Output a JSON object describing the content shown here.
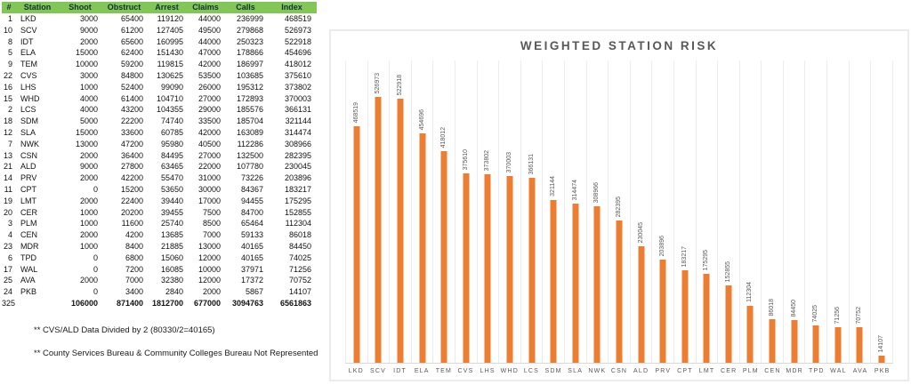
{
  "table": {
    "headers": [
      "#",
      "Station",
      "Shoot",
      "Obstruct",
      "Arrest",
      "Claims",
      "Calls",
      "Index"
    ],
    "rows": [
      [
        "1",
        "LKD",
        "3000",
        "65400",
        "119120",
        "44000",
        "236999",
        "468519"
      ],
      [
        "10",
        "SCV",
        "9000",
        "61200",
        "127405",
        "49500",
        "279868",
        "526973"
      ],
      [
        "8",
        "IDT",
        "2000",
        "65600",
        "160995",
        "44000",
        "250323",
        "522918"
      ],
      [
        "5",
        "ELA",
        "15000",
        "62400",
        "151430",
        "47000",
        "178866",
        "454696"
      ],
      [
        "9",
        "TEM",
        "10000",
        "59200",
        "119815",
        "42000",
        "186997",
        "418012"
      ],
      [
        "22",
        "CVS",
        "3000",
        "84800",
        "130625",
        "53500",
        "103685",
        "375610"
      ],
      [
        "16",
        "LHS",
        "1000",
        "52400",
        "99090",
        "26000",
        "195312",
        "373802"
      ],
      [
        "15",
        "WHD",
        "4000",
        "61400",
        "104710",
        "27000",
        "172893",
        "370003"
      ],
      [
        "2",
        "LCS",
        "4000",
        "43200",
        "104355",
        "29000",
        "185576",
        "366131"
      ],
      [
        "18",
        "SDM",
        "5000",
        "22200",
        "74740",
        "33500",
        "185704",
        "321144"
      ],
      [
        "12",
        "SLA",
        "15000",
        "33600",
        "60785",
        "42000",
        "163089",
        "314474"
      ],
      [
        "7",
        "NWK",
        "13000",
        "47200",
        "95980",
        "40500",
        "112286",
        "308966"
      ],
      [
        "13",
        "CSN",
        "2000",
        "36400",
        "84495",
        "27000",
        "132500",
        "282395"
      ],
      [
        "21",
        "ALD",
        "9000",
        "27800",
        "63465",
        "22000",
        "107780",
        "230045"
      ],
      [
        "14",
        "PRV",
        "2000",
        "42200",
        "55470",
        "31000",
        "73226",
        "203896"
      ],
      [
        "11",
        "CPT",
        "0",
        "15200",
        "53650",
        "30000",
        "84367",
        "183217"
      ],
      [
        "19",
        "LMT",
        "2000",
        "22400",
        "39440",
        "17000",
        "94455",
        "175295"
      ],
      [
        "20",
        "CER",
        "1000",
        "20200",
        "39455",
        "7500",
        "84700",
        "152855"
      ],
      [
        "3",
        "PLM",
        "1000",
        "11600",
        "25740",
        "8500",
        "65464",
        "112304"
      ],
      [
        "4",
        "CEN",
        "2000",
        "4200",
        "13685",
        "7000",
        "59133",
        "86018"
      ],
      [
        "23",
        "MDR",
        "1000",
        "8400",
        "21885",
        "13000",
        "40165",
        "84450"
      ],
      [
        "6",
        "TPD",
        "0",
        "6800",
        "15060",
        "12000",
        "40165",
        "74025"
      ],
      [
        "17",
        "WAL",
        "0",
        "7200",
        "16085",
        "10000",
        "37971",
        "71256"
      ],
      [
        "25",
        "AVA",
        "2000",
        "7000",
        "32380",
        "12000",
        "17372",
        "70752"
      ],
      [
        "24",
        "PKB",
        "0",
        "3400",
        "2840",
        "2000",
        "5867",
        "14107"
      ]
    ],
    "total": [
      "325",
      "",
      "106000",
      "871400",
      "1812700",
      "677000",
      "3094763",
      "6561863"
    ]
  },
  "footnotes": [
    "** CVS/ALD Data Divided by 2 (80330/2=40165)",
    "** County Services Bureau & Community Colleges Bureau Not Represented"
  ],
  "chart_data": {
    "type": "bar",
    "title": "WEIGHTED STATION RISK",
    "categories": [
      "LKD",
      "SCV",
      "IDT",
      "ELA",
      "TEM",
      "CVS",
      "LHS",
      "WHD",
      "LCS",
      "SDM",
      "SLA",
      "NWK",
      "CSN",
      "ALD",
      "PRV",
      "CPT",
      "LMT",
      "CER",
      "PLM",
      "CEN",
      "MDR",
      "TPD",
      "WAL",
      "AVA",
      "PKB"
    ],
    "values": [
      468519,
      526973,
      522918,
      454696,
      418012,
      375610,
      373802,
      370003,
      366131,
      321144,
      314474,
      308966,
      282395,
      230045,
      203896,
      183217,
      175295,
      152855,
      112304,
      86018,
      84450,
      74025,
      71256,
      70752,
      14107
    ],
    "xlabel": "",
    "ylabel": "",
    "ylim": [
      0,
      600000
    ],
    "grid": "vertical-only",
    "legend": "none",
    "data_labels": "rotated-vertical-outside-end"
  },
  "colors": {
    "header_green": "#82c657",
    "bar_orange": "#ED7D31",
    "chart_text": "#595959",
    "chart_border": "#ececec",
    "gridline": "#ececec",
    "axis_line": "#d9d9d9"
  }
}
